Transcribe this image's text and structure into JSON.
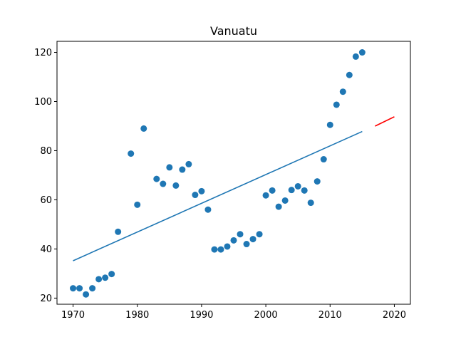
{
  "chart_data": {
    "type": "scatter",
    "title": "Vanuatu",
    "xlabel": "",
    "ylabel": "",
    "xlim": [
      1967.5,
      2022.5
    ],
    "ylim": [
      17.5,
      124.5
    ],
    "xticks": [
      1970,
      1980,
      1990,
      2000,
      2010,
      2020
    ],
    "yticks": [
      20,
      40,
      60,
      80,
      100,
      120
    ],
    "grid": false,
    "legend": "none",
    "colors": {
      "points": "#1f77b4",
      "fit": "#1f77b4",
      "forecast": "#ff0000"
    },
    "series": [
      {
        "kind": "scatter",
        "x": [
          1970,
          1971,
          1972,
          1973,
          1974,
          1975,
          1976,
          1977,
          1979,
          1980,
          1981,
          1983,
          1984,
          1985,
          1986,
          1987,
          1988,
          1989,
          1990,
          1991,
          1992,
          1993,
          1994,
          1995,
          1996,
          1997,
          1998,
          1999,
          2000,
          2001,
          2002,
          2003,
          2004,
          2005,
          2006,
          2007,
          2008,
          2009,
          2010,
          2011,
          2012,
          2013,
          2014,
          2015
        ],
        "y": [
          24,
          24,
          21.5,
          24,
          27.7,
          28.3,
          29.8,
          47,
          78.8,
          58,
          89,
          68.5,
          66.5,
          73.2,
          65.8,
          72.3,
          74.5,
          62,
          63.5,
          56,
          39.8,
          39.8,
          41,
          43.5,
          46,
          42,
          44,
          46,
          61.8,
          63.8,
          57.2,
          59.7,
          64,
          65.5,
          63.8,
          58.8,
          67.5,
          76.5,
          90.5,
          98.7,
          104,
          110.8,
          118.3,
          120
        ]
      },
      {
        "kind": "line",
        "x": [
          1970,
          2015
        ],
        "y": [
          35.2,
          87.8
        ]
      },
      {
        "kind": "line",
        "x": [
          2017,
          2020
        ],
        "y": [
          90,
          93.8
        ]
      }
    ]
  }
}
